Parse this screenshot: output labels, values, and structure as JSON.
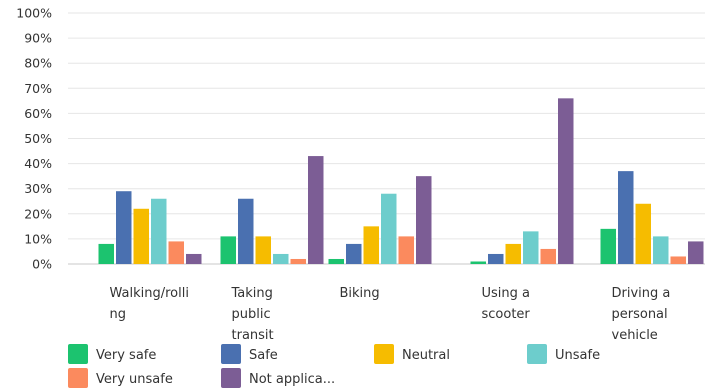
{
  "chart_data": {
    "type": "bar",
    "title": "",
    "xlabel": "",
    "ylabel": "",
    "ylim": [
      0,
      100
    ],
    "y_ticks": [
      "0%",
      "10%",
      "20%",
      "30%",
      "40%",
      "50%",
      "60%",
      "70%",
      "80%",
      "90%",
      "100%"
    ],
    "grid": true,
    "legend_position": "bottom",
    "categories": [
      [
        "Walking/rolli",
        "ng"
      ],
      [
        "Taking",
        "public",
        "transit"
      ],
      [
        "Biking"
      ],
      [
        "Using a",
        "scooter"
      ],
      [
        "Driving a",
        "personal",
        "vehicle"
      ]
    ],
    "series": [
      {
        "name": "Very safe",
        "color": "#1cc36f",
        "values": [
          8,
          11,
          2,
          1,
          14
        ]
      },
      {
        "name": "Safe",
        "color": "#4a70b0",
        "values": [
          29,
          26,
          8,
          4,
          37
        ]
      },
      {
        "name": "Neutral",
        "color": "#f6bc00",
        "values": [
          22,
          11,
          15,
          8,
          24
        ]
      },
      {
        "name": "Unsafe",
        "color": "#6dcdcc",
        "values": [
          26,
          4,
          28,
          13,
          11
        ]
      },
      {
        "name": "Very unsafe",
        "color": "#fb8a5e",
        "values": [
          9,
          2,
          11,
          6,
          3
        ]
      },
      {
        "name": "Not applica...",
        "color": "#7c5d95",
        "values": [
          4,
          43,
          35,
          66,
          9
        ]
      }
    ]
  }
}
